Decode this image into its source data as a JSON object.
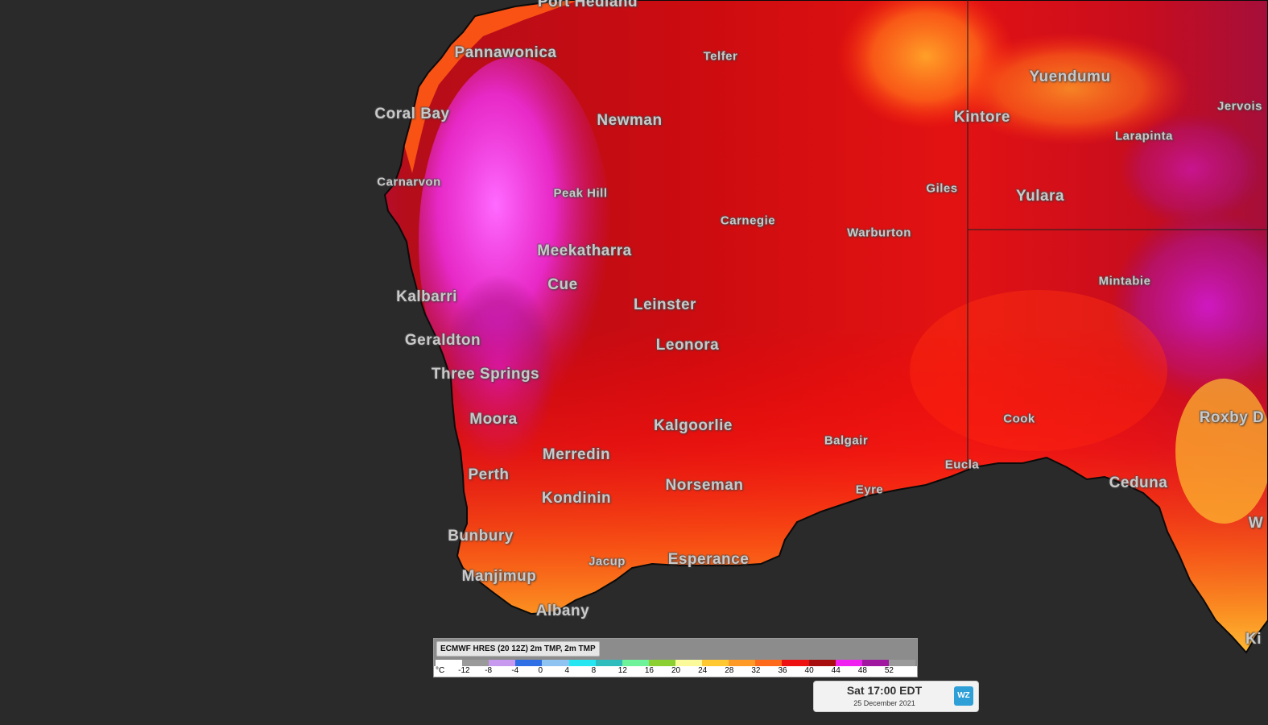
{
  "places": [
    {
      "name": "Port Hedland",
      "size": "lg"
    },
    {
      "name": "Pannawonica",
      "size": "lg"
    },
    {
      "name": "Telfer",
      "size": "sm"
    },
    {
      "name": "Coral Bay",
      "size": "lg"
    },
    {
      "name": "Newman",
      "size": "lg"
    },
    {
      "name": "Carnarvon",
      "size": "sm"
    },
    {
      "name": "Peak Hill",
      "size": "sm"
    },
    {
      "name": "Carnegie",
      "size": "sm"
    },
    {
      "name": "Warburton",
      "size": "sm"
    },
    {
      "name": "Giles",
      "size": "sm"
    },
    {
      "name": "Kintore",
      "size": "lg"
    },
    {
      "name": "Yuendumu",
      "size": "lg"
    },
    {
      "name": "Larapinta",
      "size": "sm"
    },
    {
      "name": "Jervois",
      "size": "sm"
    },
    {
      "name": "Yulara",
      "size": "lg"
    },
    {
      "name": "Meekatharra",
      "size": "lg"
    },
    {
      "name": "Cue",
      "size": "lg"
    },
    {
      "name": "Leinster",
      "size": "lg"
    },
    {
      "name": "Kalbarri",
      "size": "lg"
    },
    {
      "name": "Mintabie",
      "size": "sm"
    },
    {
      "name": "Geraldton",
      "size": "lg"
    },
    {
      "name": "Leonora",
      "size": "lg"
    },
    {
      "name": "Three Springs",
      "size": "lg"
    },
    {
      "name": "Moora",
      "size": "lg"
    },
    {
      "name": "Kalgoorlie",
      "size": "lg"
    },
    {
      "name": "Cook",
      "size": "sm"
    },
    {
      "name": "Roxby D",
      "size": "lg"
    },
    {
      "name": "Balgair",
      "size": "sm"
    },
    {
      "name": "Merredin",
      "size": "lg"
    },
    {
      "name": "Eucla",
      "size": "sm"
    },
    {
      "name": "Perth",
      "size": "lg"
    },
    {
      "name": "Norseman",
      "size": "lg"
    },
    {
      "name": "Eyre",
      "size": "sm"
    },
    {
      "name": "Ceduna",
      "size": "lg"
    },
    {
      "name": "Kondinin",
      "size": "lg"
    },
    {
      "name": "Bunbury",
      "size": "lg"
    },
    {
      "name": "Jacup",
      "size": "sm"
    },
    {
      "name": "Esperance",
      "size": "lg"
    },
    {
      "name": "Manjimup",
      "size": "lg"
    },
    {
      "name": "Albany",
      "size": "lg"
    },
    {
      "name": "W",
      "size": "lg"
    },
    {
      "name": "Ki",
      "size": "lg"
    }
  ],
  "legend": {
    "title": "ECMWF HRES (20 12Z) 2m TMP, 2m TMP",
    "unit": "°C",
    "ticks": [
      "-12",
      "-8",
      "-4",
      "0",
      "4",
      "8",
      "12",
      "16",
      "20",
      "24",
      "28",
      "32",
      "36",
      "40",
      "44",
      "48",
      "52"
    ],
    "colors": [
      "#ffffff",
      "#9a9a9a",
      "#c79af0",
      "#2f6fe6",
      "#8fc4f2",
      "#26e6f2",
      "#2fbcbc",
      "#6ef29a",
      "#8ccf30",
      "#fafa9a",
      "#ffc830",
      "#ff9a26",
      "#ff6a1a",
      "#ee1111",
      "#a80e0e",
      "#f020f0",
      "#a018a0",
      "#9a9a9a"
    ]
  },
  "time": {
    "main": "Sat 17:00 EDT",
    "date": "25 December 2021",
    "logo": "WZ"
  }
}
